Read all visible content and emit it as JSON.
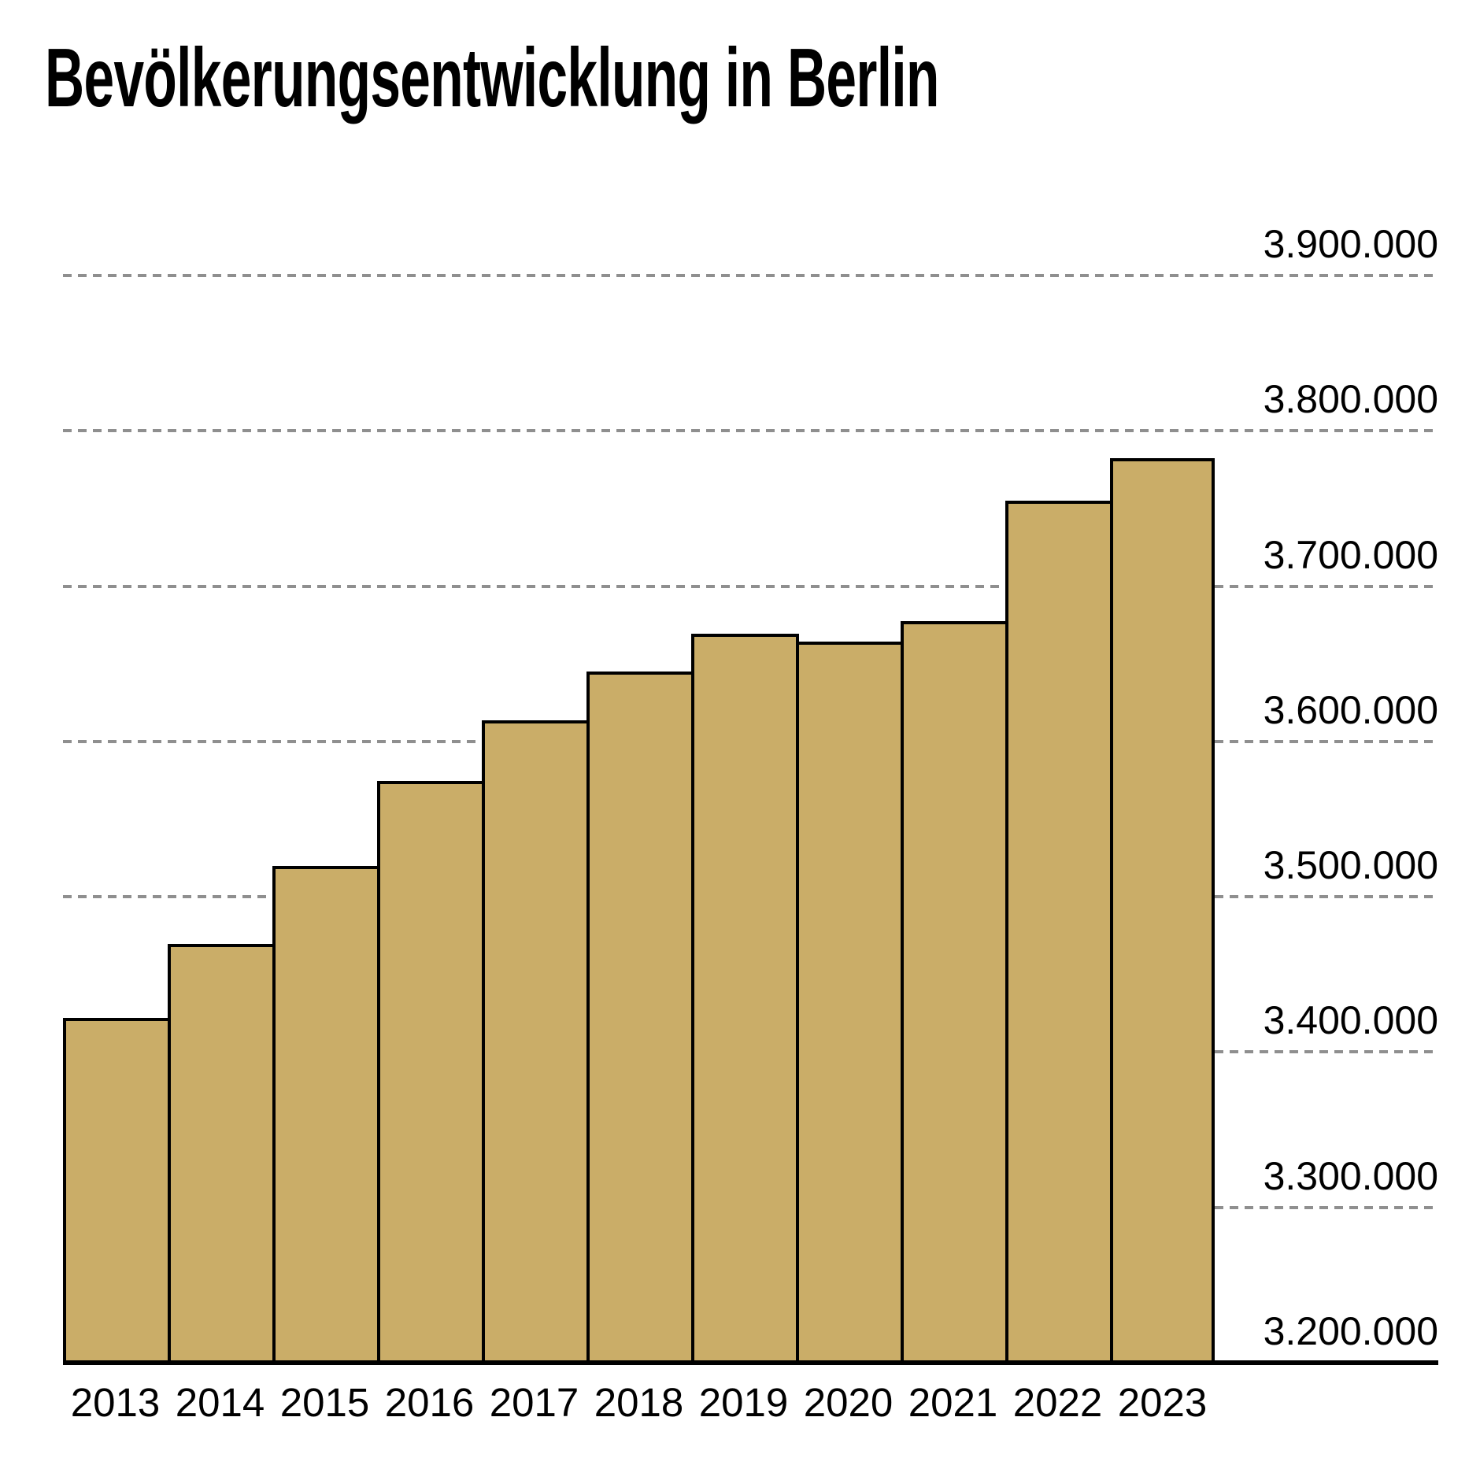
{
  "title": "Bevölkerungsentwicklung in Berlin",
  "chart_data": {
    "type": "bar",
    "title": "Bevölkerungsentwicklung in Berlin",
    "categories": [
      "2013",
      "2014",
      "2015",
      "2016",
      "2017",
      "2018",
      "2019",
      "2020",
      "2021",
      "2022",
      "2023"
    ],
    "values": [
      3421829,
      3469849,
      3520031,
      3574830,
      3613495,
      3644826,
      3669491,
      3664088,
      3677472,
      3755251,
      3782202
    ],
    "xlabel": "",
    "ylabel": "",
    "ylim": [
      3200000,
      3900000
    ],
    "yticks": [
      3200000,
      3300000,
      3400000,
      3500000,
      3600000,
      3700000,
      3800000,
      3900000
    ],
    "ytick_labels": [
      "3.200.000",
      "3.300.000",
      "3.400.000",
      "3.500.000",
      "3.600.000",
      "3.700.000",
      "3.800.000",
      "3.900.000"
    ],
    "legend": "none",
    "grid": "horizontal-dashed",
    "gridline_color": "#8f8f8f",
    "bar_color": "#caad68",
    "bar_border_color": "#000000",
    "axis_color": "#000000",
    "background_color": "#ffffff",
    "ytick_label_side": "right",
    "baseline_value_equals_axis": "3.200.000 line is the solid x-axis"
  }
}
